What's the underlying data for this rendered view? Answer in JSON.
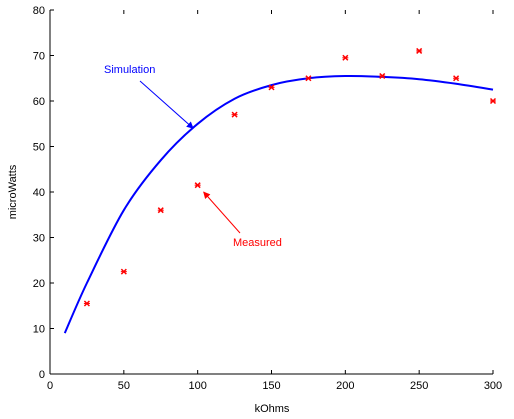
{
  "chart_data": {
    "type": "line",
    "xlabel": "kOhms",
    "ylabel": "microWatts",
    "xlim": [
      0,
      300
    ],
    "ylim": [
      0,
      80
    ],
    "xticks": [
      0,
      50,
      100,
      150,
      200,
      250,
      300
    ],
    "yticks": [
      0,
      10,
      20,
      30,
      40,
      50,
      60,
      70,
      80
    ],
    "grid": false,
    "series": [
      {
        "name": "Simulation",
        "kind": "line",
        "color": "#0000ff",
        "x": [
          10,
          25,
          50,
          75,
          100,
          125,
          150,
          175,
          200,
          225,
          250,
          275,
          300
        ],
        "y": [
          9,
          20,
          36,
          47,
          55,
          60.5,
          63.5,
          65,
          65.5,
          65.3,
          64.8,
          63.8,
          62.5
        ]
      },
      {
        "name": "Measured",
        "kind": "scatter",
        "color": "#ff0000",
        "x": [
          25,
          50,
          75,
          100,
          125,
          150,
          175,
          200,
          225,
          250,
          275,
          300
        ],
        "y": [
          15.5,
          22.5,
          36,
          41.5,
          57,
          63,
          65,
          69.5,
          65.5,
          71,
          65,
          60
        ]
      }
    ],
    "annotations": [
      {
        "text": "Simulation",
        "color": "#0000ff",
        "points_to": {
          "x": 97,
          "y": 54
        }
      },
      {
        "text": "Measured",
        "color": "#ff0000",
        "points_to": {
          "x": 104,
          "y": 40
        }
      }
    ]
  }
}
